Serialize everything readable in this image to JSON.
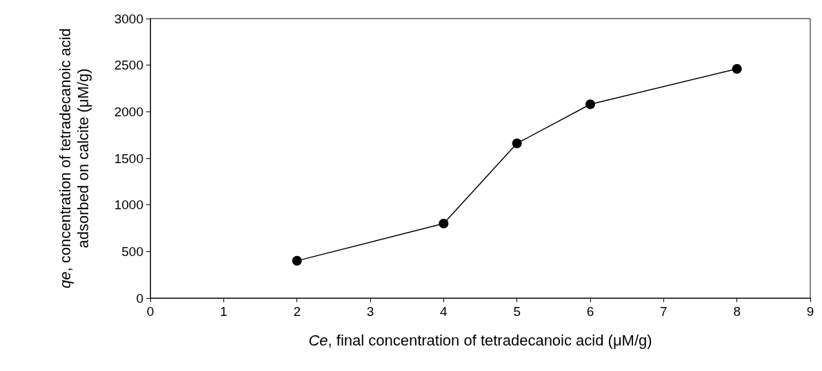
{
  "chart_data": {
    "type": "line",
    "xlabel": "Ce, final concentration of tetradecanoic acid (μM/g)",
    "ylabel": "qe, concentration of tetradecanoic acid adsorbed on calcite (μM/g)",
    "x": [
      2,
      4,
      5,
      6,
      8
    ],
    "series": [
      {
        "color": "#000000",
        "values": [
          400,
          800,
          1660,
          2080,
          2460
        ]
      }
    ],
    "xlim": [
      0,
      9
    ],
    "xticks": [
      0,
      1,
      2,
      3,
      4,
      5,
      6,
      7,
      8,
      9
    ],
    "ylim": [
      0,
      3000
    ],
    "yticks": [
      0,
      500,
      1000,
      1500,
      2000,
      2500,
      3000
    ],
    "grid": false,
    "marker": "circle",
    "line_style": "solid"
  }
}
